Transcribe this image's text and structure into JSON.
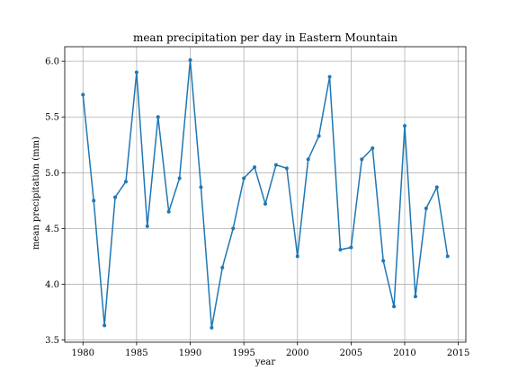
{
  "chart_data": {
    "type": "line",
    "title": "mean precipitation per day in Eastern Mountain",
    "xlabel": "year",
    "ylabel": "mean precipitation (mm)",
    "xlim": [
      1978.3,
      2015.7
    ],
    "ylim": [
      3.48,
      6.13
    ],
    "xticks": [
      1980,
      1985,
      1990,
      1995,
      2000,
      2005,
      2010,
      2015
    ],
    "yticks": [
      3.5,
      4.0,
      4.5,
      5.0,
      5.5,
      6.0
    ],
    "xtick_labels": [
      "1980",
      "1985",
      "1990",
      "1995",
      "2000",
      "2005",
      "2010",
      "2015"
    ],
    "ytick_labels": [
      "3.5",
      "4.0",
      "4.5",
      "5.0",
      "5.5",
      "6.0"
    ],
    "grid": true,
    "color": "#1f77b4",
    "x": [
      1980,
      1981,
      1982,
      1983,
      1984,
      1985,
      1986,
      1987,
      1988,
      1989,
      1990,
      1991,
      1992,
      1993,
      1994,
      1995,
      1996,
      1997,
      1998,
      1999,
      2000,
      2001,
      2002,
      2003,
      2004,
      2005,
      2006,
      2007,
      2008,
      2009,
      2010,
      2011,
      2012,
      2013,
      2014
    ],
    "values": [
      5.7,
      4.75,
      3.63,
      4.78,
      4.92,
      5.9,
      4.52,
      5.5,
      4.65,
      4.95,
      6.01,
      4.87,
      3.61,
      4.15,
      4.5,
      4.95,
      5.05,
      4.72,
      5.07,
      5.04,
      4.25,
      5.12,
      5.33,
      5.86,
      4.31,
      4.33,
      5.12,
      5.22,
      4.21,
      3.8,
      5.42,
      3.89,
      4.68,
      4.87,
      4.25
    ]
  }
}
